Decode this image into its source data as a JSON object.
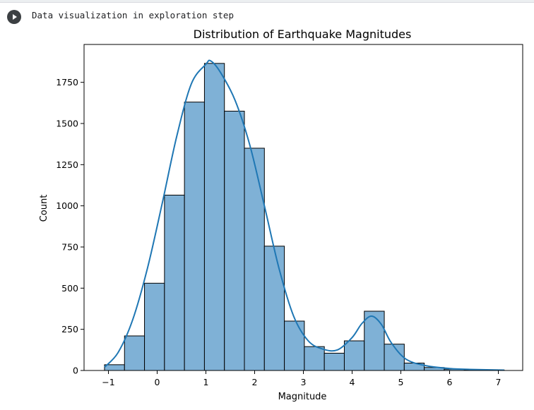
{
  "cell": {
    "text": "Data visualization in exploration step"
  },
  "colors": {
    "bar_fill": "#7fb1d6",
    "bar_edge": "#000000",
    "kde_line": "#1f77b4",
    "run_button": "#3c4043"
  },
  "icons": {
    "run": "play-icon"
  },
  "chart_data": {
    "type": "bar",
    "title": "Distribution of Earthquake Magnitudes",
    "xlabel": "Magnitude",
    "ylabel": "Count",
    "xlim": [
      -1.5,
      7.5
    ],
    "ylim": [
      0,
      1980
    ],
    "xticks": [
      -1,
      0,
      1,
      2,
      3,
      4,
      5,
      6,
      7
    ],
    "yticks": [
      0,
      250,
      500,
      750,
      1000,
      1250,
      1500,
      1750
    ],
    "bin_edges": [
      -1.08,
      -0.67,
      -0.26,
      0.15,
      0.56,
      0.97,
      1.38,
      1.79,
      2.2,
      2.61,
      3.02,
      3.43,
      3.84,
      4.25,
      4.66,
      5.07,
      5.48,
      5.89,
      6.3,
      6.71,
      7.12
    ],
    "values": [
      35,
      210,
      530,
      1065,
      1630,
      1865,
      1575,
      1350,
      755,
      300,
      145,
      105,
      180,
      360,
      160,
      45,
      18,
      8,
      4,
      3
    ],
    "kde": {
      "x": [
        -1.08,
        -0.8,
        -0.5,
        -0.2,
        0.1,
        0.4,
        0.7,
        1.0,
        1.1,
        1.3,
        1.6,
        1.9,
        2.2,
        2.5,
        2.8,
        3.1,
        3.4,
        3.7,
        4.0,
        4.2,
        4.4,
        4.6,
        4.8,
        5.1,
        5.5,
        6.0,
        6.5,
        7.12
      ],
      "y": [
        20,
        110,
        310,
        620,
        1010,
        1420,
        1740,
        1860,
        1880,
        1810,
        1640,
        1370,
        1000,
        620,
        330,
        180,
        130,
        125,
        200,
        285,
        330,
        280,
        170,
        70,
        30,
        12,
        6,
        2
      ]
    },
    "legend": "none",
    "grid": false
  }
}
